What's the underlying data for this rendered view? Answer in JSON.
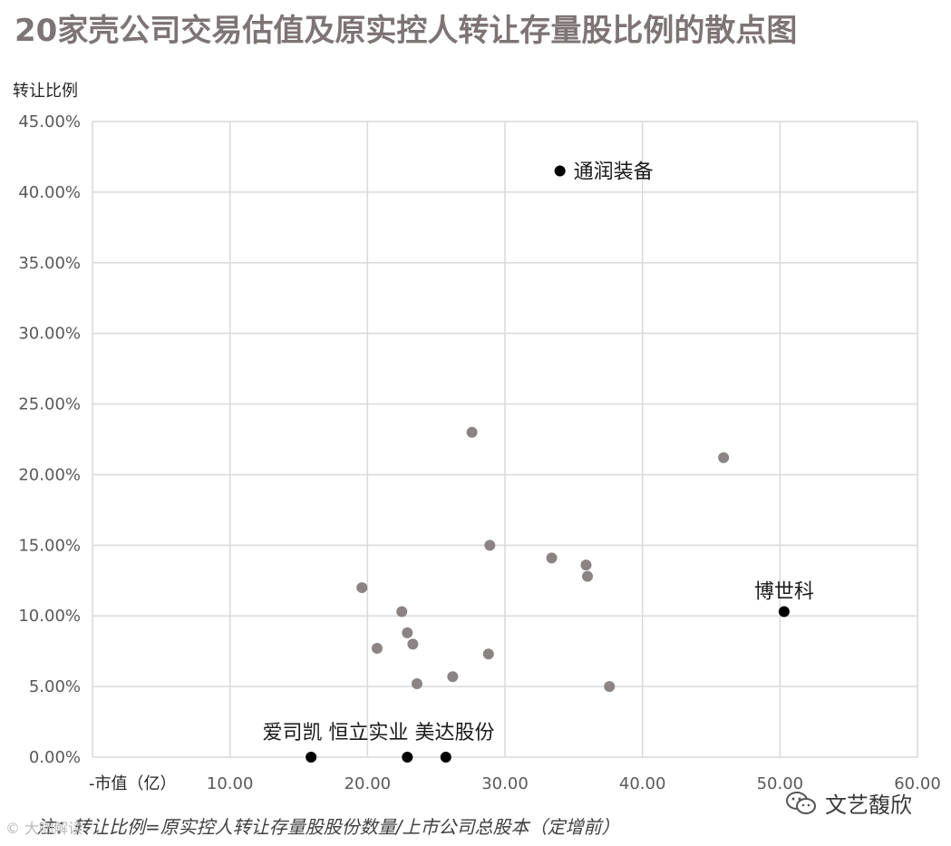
{
  "title": "20家壳公司交易估值及原实控人转让存量股比例的散点图",
  "footnote": "注：转让比例=原实控人转让存量股股份数量/上市公司总股本（定增前）",
  "watermark_left": "© 大咖解读",
  "watermark_right": "文艺馥欣",
  "chart_data": {
    "type": "scatter",
    "title": "20家壳公司交易估值及原实控人转让存量股比例的散点图",
    "xlabel": "市值（亿）",
    "ylabel": "转让比例",
    "xlim": [
      0,
      60
    ],
    "ylim": [
      0,
      0.45
    ],
    "x_ticks": [
      "10.00",
      "20.00",
      "30.00",
      "40.00",
      "50.00",
      "60.00"
    ],
    "y_ticks": [
      "0.00%",
      "5.00%",
      "10.00%",
      "15.00%",
      "20.00%",
      "25.00%",
      "30.00%",
      "35.00%",
      "40.00%",
      "45.00%"
    ],
    "grid": true,
    "colors": {
      "regular": "#8c8482",
      "highlight": "#000000",
      "grid": "#d9d9d9"
    },
    "points": [
      {
        "x": 34.0,
        "y": 0.415,
        "label": "通润装备",
        "highlight": true
      },
      {
        "x": 50.3,
        "y": 0.103,
        "label": "博世科",
        "highlight": true
      },
      {
        "x": 15.9,
        "y": 0.0,
        "label": "爱司凯",
        "highlight": true
      },
      {
        "x": 22.9,
        "y": 0.0,
        "label": "恒立实业",
        "highlight": true
      },
      {
        "x": 25.7,
        "y": 0.0,
        "label": "美达股份",
        "highlight": true
      },
      {
        "x": 27.6,
        "y": 0.23,
        "highlight": false
      },
      {
        "x": 45.9,
        "y": 0.212,
        "highlight": false
      },
      {
        "x": 28.9,
        "y": 0.15,
        "highlight": false
      },
      {
        "x": 33.4,
        "y": 0.141,
        "highlight": false
      },
      {
        "x": 35.9,
        "y": 0.136,
        "highlight": false
      },
      {
        "x": 36.0,
        "y": 0.128,
        "highlight": false
      },
      {
        "x": 19.6,
        "y": 0.12,
        "highlight": false
      },
      {
        "x": 22.5,
        "y": 0.103,
        "highlight": false
      },
      {
        "x": 22.9,
        "y": 0.088,
        "highlight": false
      },
      {
        "x": 23.3,
        "y": 0.08,
        "highlight": false
      },
      {
        "x": 20.7,
        "y": 0.077,
        "highlight": false
      },
      {
        "x": 28.8,
        "y": 0.073,
        "highlight": false
      },
      {
        "x": 26.2,
        "y": 0.057,
        "highlight": false
      },
      {
        "x": 23.6,
        "y": 0.052,
        "highlight": false
      },
      {
        "x": 37.6,
        "y": 0.05,
        "highlight": false
      }
    ]
  }
}
